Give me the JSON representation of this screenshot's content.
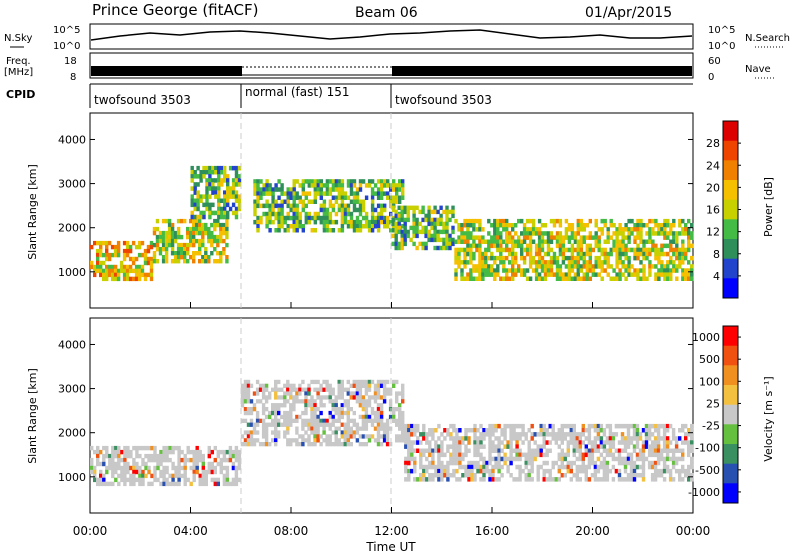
{
  "header": {
    "station": "Prince George (fitACF)",
    "beam": "Beam 06",
    "date": "01/Apr/2015"
  },
  "strips": {
    "nsky_label": "N.Sky",
    "nsky_ticks": [
      "10^5",
      "10^0"
    ],
    "nsearch_label": "N.Search",
    "freq_label_1": "Freq.",
    "freq_label_2": "[MHz]",
    "freq_ticks": [
      "18",
      "8"
    ],
    "nave_label": "Nave",
    "nave_ticks": [
      "60",
      "0"
    ],
    "cpid_label": "CPID",
    "cpid_segments": [
      {
        "name": "twofsound 3503",
        "start": "00:00",
        "end": "06:00"
      },
      {
        "name": "normal (fast) 151",
        "start": "06:00",
        "end": "12:00"
      },
      {
        "name": "twofsound 3503",
        "start": "12:00",
        "end": "24:00"
      }
    ]
  },
  "colors": {
    "power_scale": [
      "#0000ff",
      "#2244cc",
      "#2f8f5a",
      "#44bb44",
      "#c8d000",
      "#f4c000",
      "#f08000",
      "#ee4400",
      "#dd0000"
    ],
    "velocity_scale": [
      "#0000ff",
      "#2850b0",
      "#3a9060",
      "#66c040",
      "#c8c8c8",
      "#f4c040",
      "#f09020",
      "#f05010",
      "#ff0000"
    ]
  },
  "chart_data": [
    {
      "type": "heatmap",
      "name": "Power",
      "xlabel": "Time UT",
      "ylabel": "Slant Range [km]",
      "x_ticks": [
        "00:00",
        "04:00",
        "08:00",
        "12:00",
        "16:00",
        "20:00",
        "00:00"
      ],
      "x_range_hours": [
        0,
        24
      ],
      "y_ticks": [
        1000,
        2000,
        3000,
        4000
      ],
      "y_range_km": [
        180,
        4600
      ],
      "colorbar": {
        "label": "Power [dB]",
        "ticks": [
          4,
          8,
          12,
          16,
          20,
          24,
          28
        ],
        "range": [
          0,
          32
        ]
      },
      "echo_bands": [
        {
          "t_start": 0.0,
          "t_end": 2.5,
          "range_low": 800,
          "range_high": 1700,
          "power": 18
        },
        {
          "t_start": 2.5,
          "t_end": 5.5,
          "range_low": 1200,
          "range_high": 2200,
          "power": 14
        },
        {
          "t_start": 4.0,
          "t_end": 6.0,
          "range_low": 2200,
          "range_high": 3400,
          "power": 10
        },
        {
          "t_start": 6.5,
          "t_end": 12.5,
          "range_low": 1900,
          "range_high": 3100,
          "power": 12
        },
        {
          "t_start": 12.0,
          "t_end": 14.5,
          "range_low": 1500,
          "range_high": 2500,
          "power": 10
        },
        {
          "t_start": 14.5,
          "t_end": 24.0,
          "range_low": 800,
          "range_high": 2200,
          "power": 16
        }
      ]
    },
    {
      "type": "heatmap",
      "name": "Velocity",
      "xlabel": "Time UT",
      "ylabel": "Slant Range [km]",
      "x_ticks": [
        "00:00",
        "04:00",
        "08:00",
        "12:00",
        "16:00",
        "20:00",
        "00:00"
      ],
      "x_range_hours": [
        0,
        24
      ],
      "y_ticks": [
        1000,
        2000,
        3000,
        4000
      ],
      "y_range_km": [
        180,
        4600
      ],
      "colorbar": {
        "label": "Velocity [m s⁻¹]",
        "ticks": [
          1000,
          500,
          100,
          25,
          -25,
          -100,
          -500,
          -1000
        ]
      },
      "echo_bands": [
        {
          "t_start": 0.0,
          "t_end": 6.0,
          "range_low": 800,
          "range_high": 1700,
          "velocity": 0
        },
        {
          "t_start": 6.0,
          "t_end": 12.5,
          "range_low": 1700,
          "range_high": 3200,
          "velocity": 0
        },
        {
          "t_start": 12.5,
          "t_end": 24.0,
          "range_low": 900,
          "range_high": 2200,
          "velocity": 0
        }
      ]
    }
  ]
}
